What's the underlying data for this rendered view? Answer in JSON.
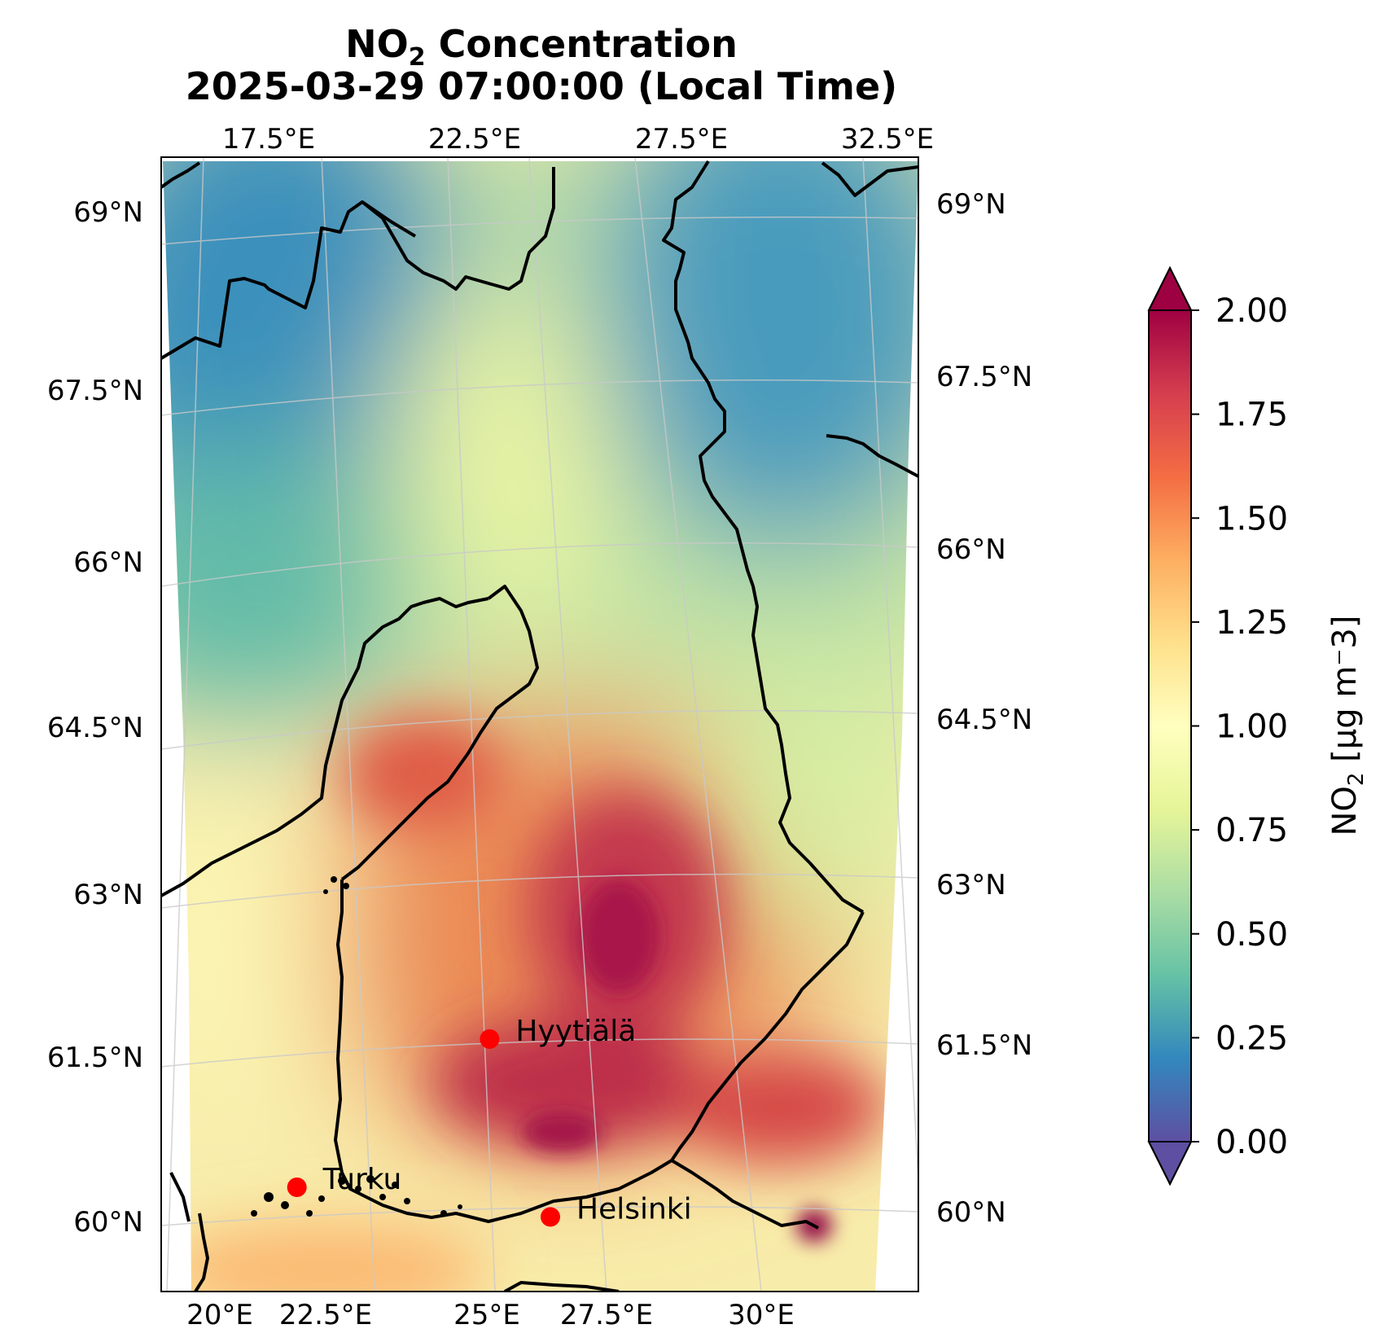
{
  "title": {
    "line1_prefix": "NO",
    "line1_sub": "2",
    "line1_suffix": " Concentration",
    "line2": "2025-03-29 07:00:00 (Local Time)"
  },
  "map": {
    "top_lon_labels": [
      "17.5°E",
      "22.5°E",
      "27.5°E",
      "32.5°E"
    ],
    "bottom_lon_labels": [
      "20°E",
      "22.5°E",
      "25°E",
      "27.5°E",
      "30°E"
    ],
    "left_lat_labels": [
      "69°N",
      "67.5°N",
      "66°N",
      "64.5°N",
      "63°N",
      "61.5°N",
      "60°N"
    ],
    "right_lat_labels": [
      "69°N",
      "67.5°N",
      "66°N",
      "64.5°N",
      "63°N",
      "61.5°N",
      "60°N"
    ],
    "stations": [
      {
        "name": "Hyytiälä",
        "lon": 24.3,
        "lat": 61.85
      },
      {
        "name": "Turku",
        "lon": 22.27,
        "lat": 60.45
      },
      {
        "name": "Helsinki",
        "lon": 24.94,
        "lat": 60.17
      }
    ],
    "marker_color": "#ff0000",
    "coastline_color": "#000000"
  },
  "colorbar": {
    "colormap": "Spectral_r",
    "min": 0.0,
    "max": 2.0,
    "extend": "both",
    "tick_labels": [
      "0.00",
      "0.25",
      "0.50",
      "0.75",
      "1.00",
      "1.25",
      "1.50",
      "1.75",
      "2.00"
    ],
    "label_prefix": "NO",
    "label_sub": "2",
    "label_suffix": " [µg m⁻3]",
    "colors": [
      "#5e4fa2",
      "#3288bd",
      "#66c2a5",
      "#abdda4",
      "#e6f598",
      "#ffffbf",
      "#fee08b",
      "#fdae61",
      "#f46d43",
      "#d53e4f",
      "#9e0142"
    ]
  }
}
